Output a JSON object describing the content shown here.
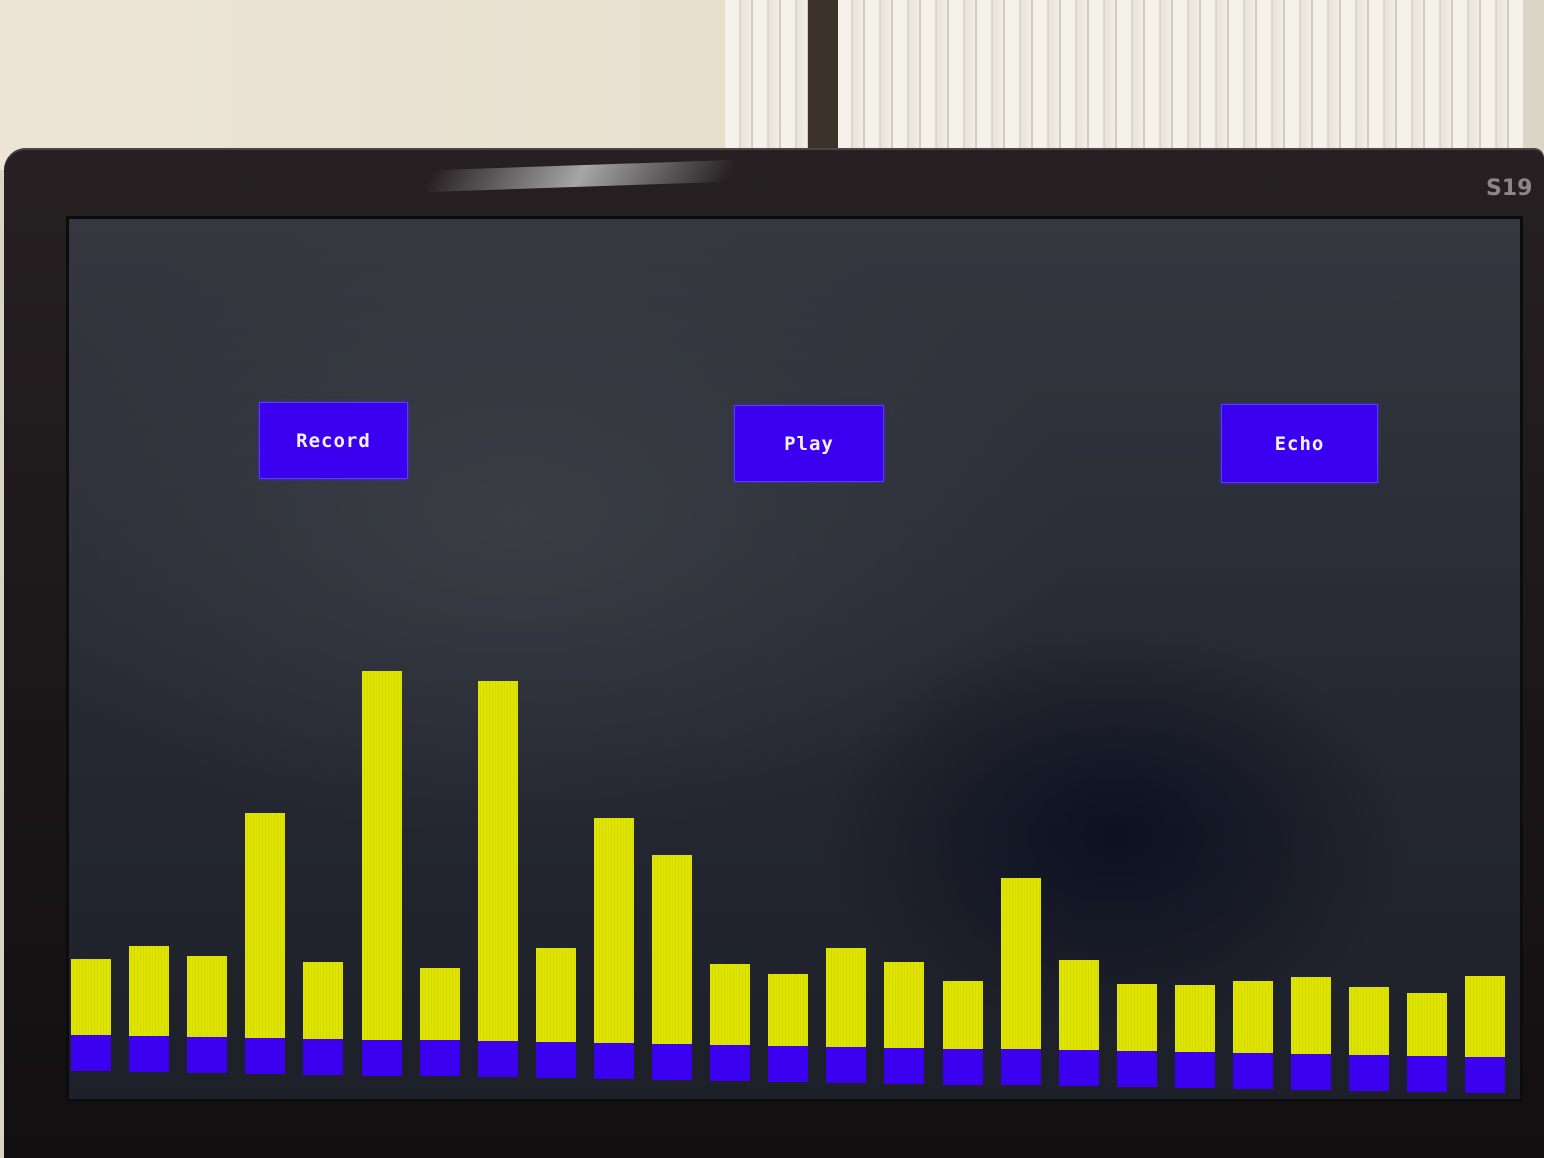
{
  "buttons": {
    "record_label": "Record",
    "play_label": "Play",
    "echo_label": "Echo"
  },
  "monitor": {
    "brand_text": "S19"
  },
  "colors": {
    "button_fill": "#3b00f0",
    "bar_level": "#dfe400",
    "bar_base": "#3a00ef"
  },
  "chart_data": {
    "type": "bar",
    "bar_count": 25,
    "values": [
      17,
      20,
      18,
      50,
      17,
      82,
      16,
      80,
      21,
      50,
      42,
      18,
      16,
      22,
      19,
      15,
      38,
      20,
      15,
      15,
      16,
      17,
      15,
      14,
      18
    ]
  }
}
